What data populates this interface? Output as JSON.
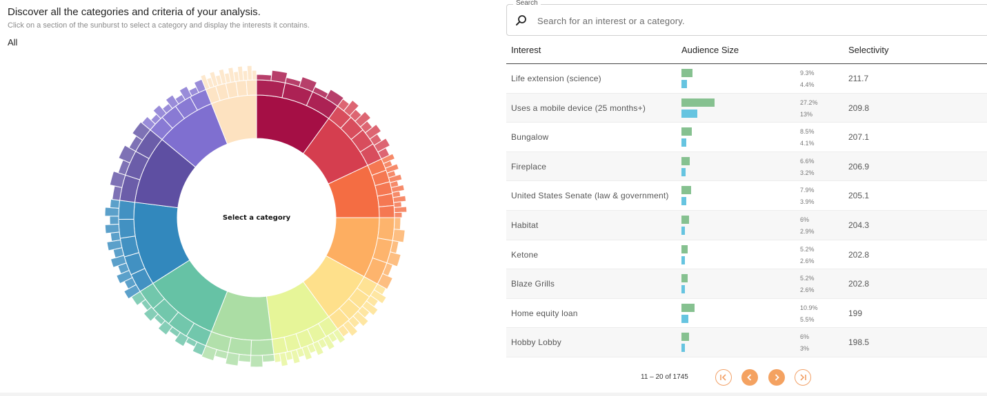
{
  "header": {
    "title": "Discover all the categories and criteria of your analysis.",
    "subtitle": "Click on a section of the sunburst to select a category and display the interests it contains.",
    "breadcrumb": "All"
  },
  "sunburst": {
    "center_label": "Select a category",
    "categories": [
      {
        "color": "#a50f45",
        "share": 0.1
      },
      {
        "color": "#d53e4f",
        "share": 0.08
      },
      {
        "color": "#f46d43",
        "share": 0.07
      },
      {
        "color": "#fdae61",
        "share": 0.08
      },
      {
        "color": "#fee08b",
        "share": 0.07
      },
      {
        "color": "#e6f598",
        "share": 0.08
      },
      {
        "color": "#abdda4",
        "share": 0.08
      },
      {
        "color": "#66c2a5",
        "share": 0.1
      },
      {
        "color": "#3288bd",
        "share": 0.11
      },
      {
        "color": "#5e4fa2",
        "share": 0.09
      },
      {
        "color": "#7f6fd0",
        "share": 0.08
      },
      {
        "color": "#fde2c0",
        "share": 0.06
      }
    ]
  },
  "search": {
    "legend": "Search",
    "placeholder": "Search for an interest or a category.",
    "icon": "search-icon"
  },
  "table": {
    "columns": {
      "interest": "Interest",
      "audience": "Audience Size",
      "selectivity": "Selectivity"
    },
    "colors": {
      "bar1": "#86c190",
      "bar2": "#66c4e0"
    },
    "rows": [
      {
        "interest": "Life extension (science)",
        "pct1": "9.3%",
        "pct2": "4.4%",
        "v1": 9.3,
        "v2": 4.4,
        "selectivity": "211.7"
      },
      {
        "interest": "Uses a mobile device (25 months+)",
        "pct1": "27.2%",
        "pct2": "13%",
        "v1": 27.2,
        "v2": 13,
        "selectivity": "209.8"
      },
      {
        "interest": "Bungalow",
        "pct1": "8.5%",
        "pct2": "4.1%",
        "v1": 8.5,
        "v2": 4.1,
        "selectivity": "207.1"
      },
      {
        "interest": "Fireplace",
        "pct1": "6.6%",
        "pct2": "3.2%",
        "v1": 6.6,
        "v2": 3.2,
        "selectivity": "206.9"
      },
      {
        "interest": "United States Senate (law & government)",
        "pct1": "7.9%",
        "pct2": "3.9%",
        "v1": 7.9,
        "v2": 3.9,
        "selectivity": "205.1"
      },
      {
        "interest": "Habitat",
        "pct1": "6%",
        "pct2": "2.9%",
        "v1": 6,
        "v2": 2.9,
        "selectivity": "204.3"
      },
      {
        "interest": "Ketone",
        "pct1": "5.2%",
        "pct2": "2.6%",
        "v1": 5.2,
        "v2": 2.6,
        "selectivity": "202.8"
      },
      {
        "interest": "Blaze Grills",
        "pct1": "5.2%",
        "pct2": "2.6%",
        "v1": 5.2,
        "v2": 2.6,
        "selectivity": "202.8"
      },
      {
        "interest": "Home equity loan",
        "pct1": "10.9%",
        "pct2": "5.5%",
        "v1": 10.9,
        "v2": 5.5,
        "selectivity": "199"
      },
      {
        "interest": "Hobby Lobby",
        "pct1": "6%",
        "pct2": "3%",
        "v1": 6,
        "v2": 3,
        "selectivity": "198.5"
      }
    ]
  },
  "pagination": {
    "range_label": "11 – 20 of 1745",
    "buttons": [
      "first-page-icon",
      "previous-page-icon",
      "next-page-icon",
      "last-page-icon"
    ],
    "accent": "#f4a261"
  }
}
